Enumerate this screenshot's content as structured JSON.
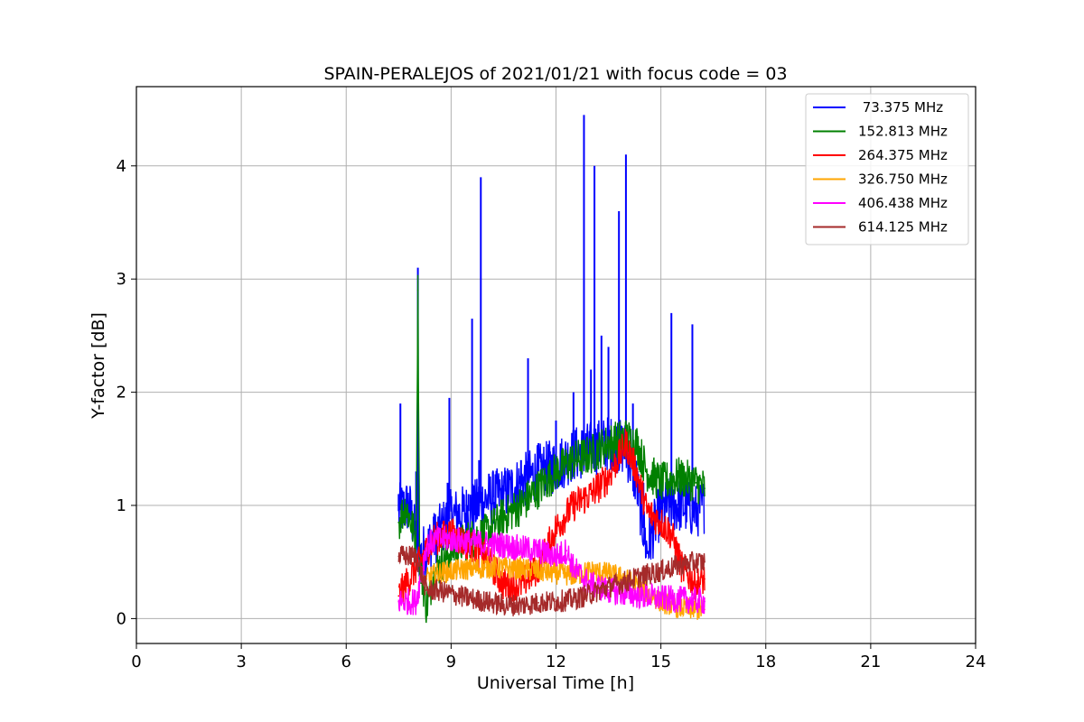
{
  "chart_data": {
    "type": "line",
    "title": "SPAIN-PERALEJOS of 2021/01/21 with focus code = 03",
    "xlabel": "Universal Time [h]",
    "ylabel": "Y-factor [dB]",
    "xlim": [
      0,
      24
    ],
    "ylim": [
      -0.22,
      4.7
    ],
    "xticks": [
      0,
      3,
      6,
      9,
      12,
      15,
      18,
      21,
      24
    ],
    "yticks": [
      0,
      1,
      2,
      3,
      4
    ],
    "grid": true,
    "legend_position": "top-right",
    "series": [
      {
        "name": " 73.375 MHz",
        "color": "#0000ff",
        "x": [
          7.5,
          7.55,
          8.0,
          8.05,
          8.5,
          8.9,
          8.95,
          9.5,
          9.6,
          9.8,
          9.85,
          10.2,
          10.5,
          11.0,
          11.2,
          11.5,
          12.0,
          12.5,
          12.8,
          13.0,
          13.1,
          13.3,
          13.5,
          13.8,
          14.0,
          14.2,
          14.5,
          14.8,
          15.0,
          15.3,
          15.5,
          15.9,
          16.25
        ],
        "y": [
          1.1,
          1.9,
          1.3,
          3.1,
          0.9,
          1.2,
          1.95,
          1.1,
          2.65,
          1.4,
          3.9,
          1.3,
          1.15,
          1.4,
          2.3,
          1.55,
          1.75,
          2.0,
          4.45,
          2.2,
          4.0,
          2.5,
          2.4,
          3.6,
          4.1,
          1.9,
          1.2,
          0.9,
          1.3,
          2.7,
          1.15,
          2.6,
          1.0
        ],
        "envelope": [
          [
            7.5,
            0.95
          ],
          [
            7.8,
            1.0
          ],
          [
            8.1,
            0.55
          ],
          [
            8.5,
            0.7
          ],
          [
            9.0,
            0.9
          ],
          [
            9.5,
            0.95
          ],
          [
            10.0,
            1.05
          ],
          [
            10.5,
            1.1
          ],
          [
            11.0,
            1.2
          ],
          [
            11.5,
            1.3
          ],
          [
            12.0,
            1.35
          ],
          [
            12.5,
            1.45
          ],
          [
            13.0,
            1.5
          ],
          [
            13.5,
            1.55
          ],
          [
            14.0,
            1.5
          ],
          [
            14.3,
            1.2
          ],
          [
            14.6,
            0.6
          ],
          [
            14.9,
            0.9
          ],
          [
            15.2,
            1.0
          ],
          [
            15.6,
            1.0
          ],
          [
            16.0,
            0.95
          ],
          [
            16.25,
            1.0
          ]
        ],
        "band": 0.25
      },
      {
        "name": "152.813 MHz",
        "color": "#008000",
        "x": [
          7.5,
          7.7,
          8.0,
          8.05,
          8.1,
          8.3,
          8.5,
          9.0,
          9.5,
          10.0,
          10.5,
          11.0,
          11.5,
          12.0,
          12.5,
          13.0,
          13.5,
          14.0,
          14.3,
          14.6,
          15.0,
          15.5,
          16.0,
          16.25
        ],
        "y": [
          0.85,
          1.0,
          0.7,
          2.9,
          0.5,
          0.1,
          0.4,
          0.6,
          0.7,
          0.75,
          0.9,
          1.0,
          1.15,
          1.3,
          1.4,
          1.45,
          1.55,
          1.6,
          1.55,
          1.3,
          1.2,
          1.25,
          1.2,
          1.15
        ],
        "band": 0.18
      },
      {
        "name": "264.375 MHz",
        "color": "#ff0000",
        "x": [
          7.5,
          8.0,
          8.5,
          9.0,
          9.5,
          10.0,
          10.5,
          11.0,
          11.5,
          12.0,
          12.5,
          13.0,
          13.5,
          14.0,
          14.3,
          14.6,
          15.0,
          15.3,
          15.6,
          16.0,
          16.25
        ],
        "y": [
          0.2,
          0.45,
          0.7,
          0.75,
          0.65,
          0.55,
          0.3,
          0.3,
          0.45,
          0.8,
          1.0,
          1.1,
          1.25,
          1.55,
          1.3,
          0.95,
          0.85,
          0.75,
          0.45,
          0.3,
          0.35
        ],
        "band": 0.15
      },
      {
        "name": "326.750 MHz",
        "color": "#ffa500",
        "x": [
          8.3,
          8.6,
          9.0,
          9.5,
          10.0,
          10.5,
          11.0,
          11.5,
          12.0,
          12.5,
          13.0,
          13.5,
          14.0,
          14.5,
          15.0,
          15.5,
          16.0,
          16.25
        ],
        "y": [
          0.35,
          0.4,
          0.42,
          0.44,
          0.45,
          0.45,
          0.44,
          0.42,
          0.4,
          0.38,
          0.42,
          0.4,
          0.35,
          0.25,
          0.15,
          0.1,
          0.08,
          0.08
        ],
        "band": 0.1
      },
      {
        "name": "406.438 MHz",
        "color": "#ff00ff",
        "x": [
          7.5,
          7.8,
          8.0,
          8.3,
          8.6,
          9.0,
          9.5,
          10.0,
          10.5,
          11.0,
          11.5,
          12.0,
          12.3,
          12.5,
          12.8,
          13.0,
          13.5,
          14.0,
          14.5,
          15.0,
          15.5,
          16.0,
          16.25
        ],
        "y": [
          0.15,
          0.15,
          0.15,
          0.65,
          0.7,
          0.7,
          0.68,
          0.66,
          0.65,
          0.62,
          0.6,
          0.55,
          0.6,
          0.45,
          0.35,
          0.3,
          0.25,
          0.22,
          0.2,
          0.18,
          0.17,
          0.16,
          0.15
        ],
        "band": 0.12
      },
      {
        "name": "614.125 MHz",
        "color": "#a52a2a",
        "x": [
          7.5,
          7.8,
          8.0,
          8.3,
          8.6,
          9.0,
          9.5,
          10.0,
          10.5,
          11.0,
          11.5,
          12.0,
          12.5,
          13.0,
          13.5,
          14.0,
          14.5,
          15.0,
          15.5,
          16.0,
          16.25
        ],
        "y": [
          0.55,
          0.55,
          0.55,
          0.25,
          0.25,
          0.22,
          0.18,
          0.15,
          0.12,
          0.12,
          0.14,
          0.15,
          0.17,
          0.22,
          0.28,
          0.33,
          0.38,
          0.42,
          0.47,
          0.5,
          0.5
        ],
        "band": 0.1
      }
    ]
  }
}
